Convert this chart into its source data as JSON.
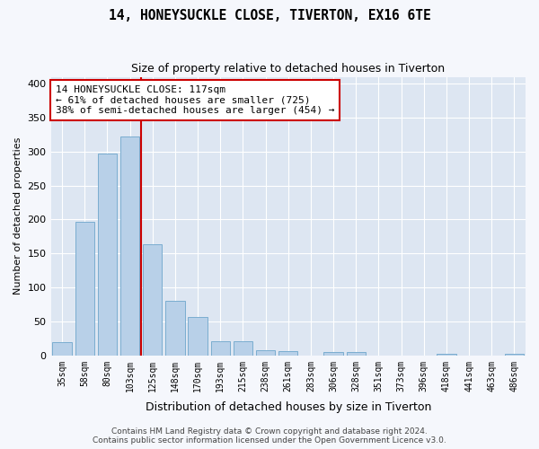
{
  "title": "14, HONEYSUCKLE CLOSE, TIVERTON, EX16 6TE",
  "subtitle": "Size of property relative to detached houses in Tiverton",
  "xlabel": "Distribution of detached houses by size in Tiverton",
  "ylabel": "Number of detached properties",
  "bar_values": [
    20,
    197,
    297,
    322,
    163,
    80,
    57,
    21,
    21,
    8,
    6,
    0,
    5,
    5,
    0,
    0,
    0,
    3,
    0,
    0,
    3
  ],
  "bar_labels": [
    "35sqm",
    "58sqm",
    "80sqm",
    "103sqm",
    "125sqm",
    "148sqm",
    "170sqm",
    "193sqm",
    "215sqm",
    "238sqm",
    "261sqm",
    "283sqm",
    "306sqm",
    "328sqm",
    "351sqm",
    "373sqm",
    "396sqm",
    "418sqm",
    "441sqm",
    "463sqm",
    "486sqm"
  ],
  "bar_color": "#b8d0e8",
  "bar_edge_color": "#7aadd0",
  "background_color": "#dde6f2",
  "grid_color": "#ffffff",
  "ylim": [
    0,
    410
  ],
  "yticks": [
    0,
    50,
    100,
    150,
    200,
    250,
    300,
    350,
    400
  ],
  "red_line_x": 3.5,
  "annotation_title": "14 HONEYSUCKLE CLOSE: 117sqm",
  "annotation_line1": "← 61% of detached houses are smaller (725)",
  "annotation_line2": "38% of semi-detached houses are larger (454) →",
  "red_line_color": "#cc0000",
  "annotation_box_color": "#ffffff",
  "annotation_box_edge": "#cc0000",
  "footer_line1": "Contains HM Land Registry data © Crown copyright and database right 2024.",
  "footer_line2": "Contains public sector information licensed under the Open Government Licence v3.0.",
  "fig_width": 6.0,
  "fig_height": 5.0,
  "fig_bg": "#f5f7fc"
}
